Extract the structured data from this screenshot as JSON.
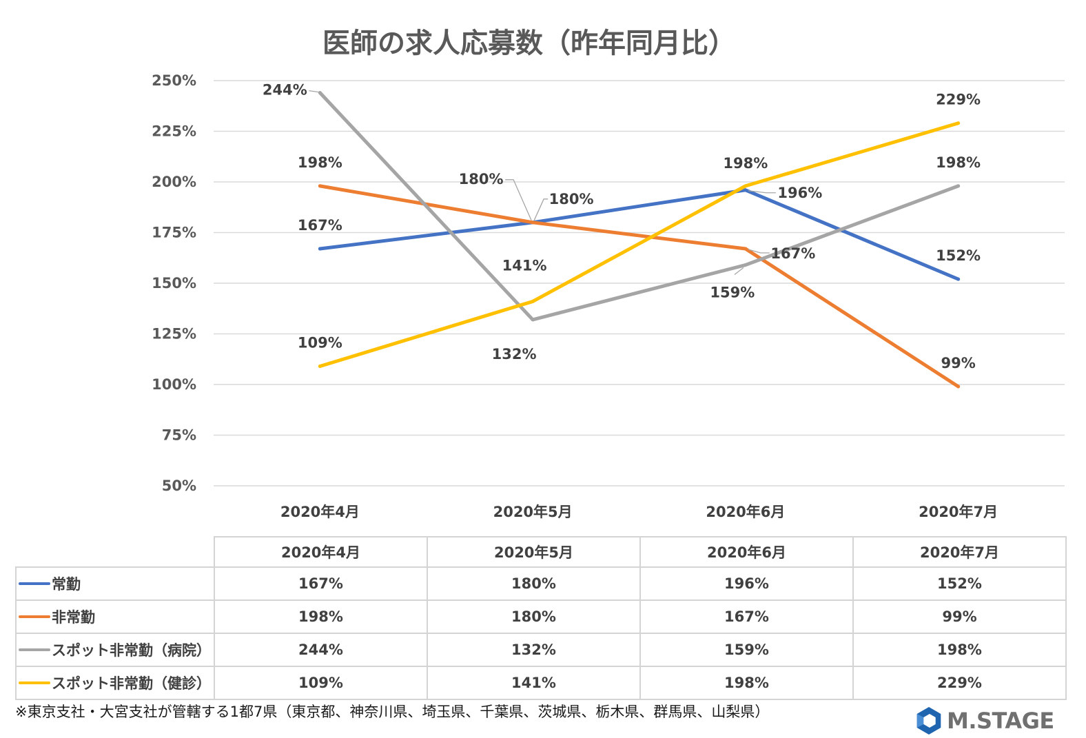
{
  "chart_data": {
    "type": "line",
    "title": "医師の求人応募数（昨年同月比）",
    "categories": [
      "2020年4月",
      "2020年5月",
      "2020年6月",
      "2020年7月"
    ],
    "ylim": [
      50,
      250
    ],
    "yticks": [
      {
        "value": 250,
        "label": "250%"
      },
      {
        "value": 225,
        "label": "225%"
      },
      {
        "value": 200,
        "label": "200%"
      },
      {
        "value": 175,
        "label": "175%"
      },
      {
        "value": 150,
        "label": "150%"
      },
      {
        "value": 125,
        "label": "125%"
      },
      {
        "value": 100,
        "label": "100%"
      },
      {
        "value": 75,
        "label": "75%"
      },
      {
        "value": 50,
        "label": "50%"
      }
    ],
    "grid": true,
    "legend": "bottom",
    "series": [
      {
        "name": "常勤",
        "color": "#4472C4",
        "values": [
          167,
          180,
          196,
          152
        ],
        "labels": [
          "167%",
          "180%",
          "196%",
          "152%"
        ]
      },
      {
        "name": "非常勤",
        "color": "#ED7D31",
        "values": [
          198,
          180,
          167,
          99
        ],
        "labels": [
          "198%",
          "180%",
          "167%",
          "99%"
        ]
      },
      {
        "name": "スポット非常勤（病院）",
        "color": "#A5A5A5",
        "values": [
          244,
          132,
          159,
          198
        ],
        "labels": [
          "244%",
          "132%",
          "159%",
          "198%"
        ]
      },
      {
        "name": "スポット非常勤（健診）",
        "color": "#FFC000",
        "values": [
          109,
          141,
          198,
          229
        ],
        "labels": [
          "109%",
          "141%",
          "198%",
          "229%"
        ]
      }
    ]
  },
  "footnote": "※東京支社・大宮支社が管轄する1都7県（東京都、神奈川県、埼玉県、千葉県、茨城県、栃木県、群馬県、山梨県）",
  "logo": {
    "text": "M.STAGE",
    "color": "#1F64AE",
    "icon": "hexagon-logo-icon"
  }
}
